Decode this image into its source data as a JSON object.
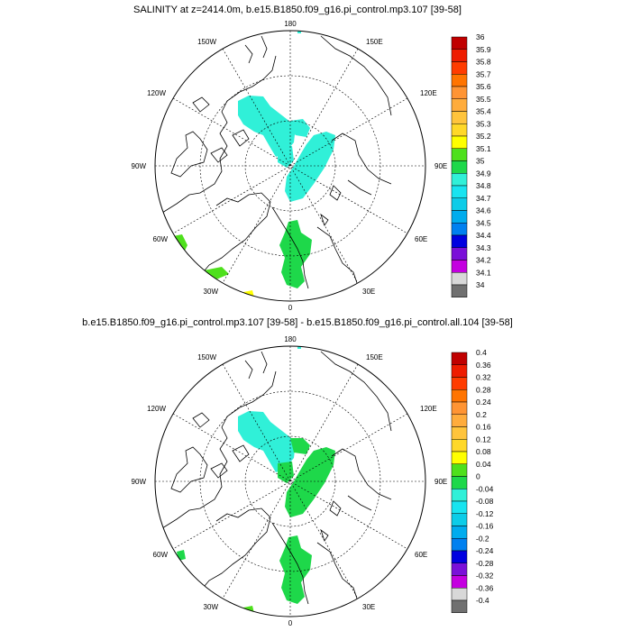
{
  "panels": [
    {
      "title": "SALINITY at z=2414.0m, b.e15.B1850.f09_g16.pi_control.mp3.107 [39-58]",
      "lon_labels": [
        "180",
        "150E",
        "120E",
        "90E",
        "60E",
        "30E",
        "0",
        "30W",
        "60W",
        "90W",
        "120W",
        "150W"
      ],
      "colorbar": {
        "labels": [
          "36",
          "35.9",
          "35.8",
          "35.7",
          "35.6",
          "35.5",
          "35.4",
          "35.3",
          "35.2",
          "35.1",
          "35",
          "34.9",
          "34.8",
          "34.7",
          "34.6",
          "34.5",
          "34.4",
          "34.3",
          "34.2",
          "34.1",
          "34"
        ],
        "colors": [
          "#c00000",
          "#ee1c00",
          "#ff3c00",
          "#ff7400",
          "#ff9433",
          "#ffac3c",
          "#ffc43c",
          "#ffd828",
          "#ffff00",
          "#4ee01c",
          "#1ed84a",
          "#30f0d8",
          "#18e4f0",
          "#0ccce8",
          "#00acee",
          "#0080f0",
          "#0000e0",
          "#7a10d8",
          "#c400e0",
          "#d8d8d8",
          "#707070"
        ]
      }
    },
    {
      "title": "b.e15.B1850.f09_g16.pi_control.mp3.107 [39-58] - b.e15.B1850.f09_g16.pi_control.all.104 [39-58]",
      "lon_labels": [
        "180",
        "150E",
        "120E",
        "90E",
        "60E",
        "30E",
        "0",
        "30W",
        "60W",
        "90W",
        "120W",
        "150W"
      ],
      "colorbar": {
        "labels": [
          "0.4",
          "0.36",
          "0.32",
          "0.28",
          "0.24",
          "0.2",
          "0.16",
          "0.12",
          "0.08",
          "0.04",
          "0",
          "-0.04",
          "-0.08",
          "-0.12",
          "-0.16",
          "-0.2",
          "-0.24",
          "-0.28",
          "-0.32",
          "-0.36",
          "-0.4"
        ],
        "colors": [
          "#c00000",
          "#ee1c00",
          "#ff3c00",
          "#ff7400",
          "#ff9433",
          "#ffac3c",
          "#ffc43c",
          "#ffd828",
          "#ffff00",
          "#4ee01c",
          "#1ed84a",
          "#30f0d8",
          "#18e4f0",
          "#0ccce8",
          "#00acee",
          "#0080f0",
          "#0000e0",
          "#7a10d8",
          "#c400e0",
          "#d8d8d8",
          "#707070"
        ]
      }
    }
  ]
}
